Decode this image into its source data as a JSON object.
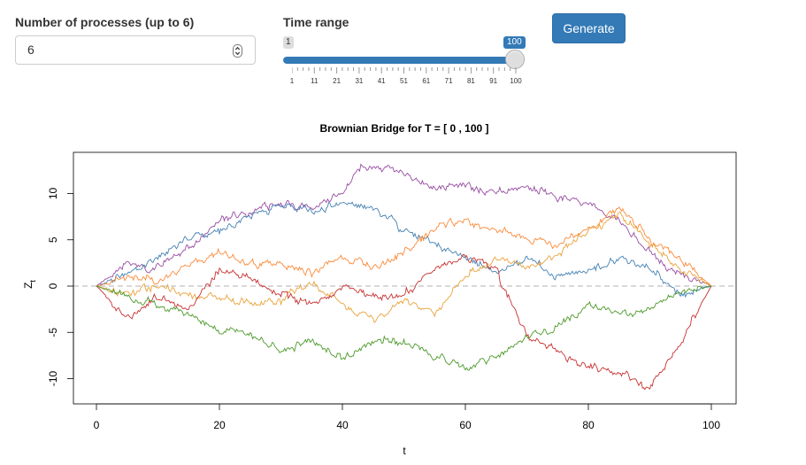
{
  "controls": {
    "processes_label": "Number of processes (up to 6)",
    "processes_value": "6",
    "time_range_label": "Time range",
    "slider": {
      "min_label": "1",
      "max_label": "100",
      "selected_fraction": 1.0,
      "tick_labels": [
        "1",
        "11",
        "21",
        "31",
        "41",
        "51",
        "61",
        "71",
        "81",
        "91",
        "100"
      ]
    },
    "generate_label": "Generate"
  },
  "chart_data": {
    "type": "line",
    "title": "Brownian Bridge for T = [ 0 , 100 ]",
    "xlabel": "t",
    "ylabel": "Z",
    "ylabel_subscript": "t",
    "xlim": [
      0,
      100
    ],
    "ylim": [
      -12.8,
      14.2
    ],
    "xticks": [
      0,
      20,
      40,
      60,
      80,
      100
    ],
    "yticks": [
      -10,
      -5,
      0,
      5,
      10
    ],
    "reference_line": 0,
    "series": [
      {
        "color": "#984ea3",
        "x": [
          0,
          5,
          10,
          15,
          20,
          25,
          30,
          35,
          40,
          43,
          47,
          50,
          55,
          60,
          65,
          70,
          75,
          80,
          85,
          90,
          95,
          100
        ],
        "y": [
          0,
          2.5,
          2.0,
          4.0,
          7.0,
          8.0,
          9.0,
          8.5,
          10.0,
          13.0,
          12.8,
          12.0,
          10.5,
          11.0,
          10.0,
          11.0,
          9.5,
          9.0,
          7.0,
          3.5,
          1.0,
          0
        ]
      },
      {
        "color": "#4682b4",
        "x": [
          0,
          5,
          10,
          15,
          20,
          25,
          30,
          35,
          40,
          45,
          50,
          55,
          60,
          65,
          70,
          75,
          80,
          85,
          90,
          95,
          100
        ],
        "y": [
          0,
          1.5,
          3.0,
          5.5,
          6.0,
          7.5,
          9.0,
          8.0,
          9.0,
          8.5,
          6.0,
          4.5,
          3.0,
          1.5,
          3.0,
          1.0,
          1.5,
          3.0,
          2.0,
          -1.0,
          0
        ]
      },
      {
        "color": "#fb8a3a",
        "x": [
          0,
          5,
          10,
          15,
          20,
          25,
          30,
          35,
          40,
          45,
          50,
          55,
          60,
          65,
          70,
          75,
          80,
          85,
          90,
          95,
          100
        ],
        "y": [
          0,
          1.0,
          0.5,
          2.5,
          3.5,
          2.5,
          2.5,
          1.5,
          3.0,
          2.0,
          3.5,
          6.0,
          7.0,
          6.0,
          5.0,
          4.5,
          6.0,
          8.5,
          5.0,
          3.0,
          0
        ]
      },
      {
        "color": "#e9a33c",
        "x": [
          0,
          5,
          10,
          15,
          20,
          25,
          30,
          35,
          40,
          45,
          50,
          55,
          60,
          65,
          70,
          75,
          80,
          85,
          90,
          95,
          100
        ],
        "y": [
          0,
          -1.0,
          0.0,
          -1.0,
          -1.5,
          -2.0,
          -1.5,
          0.5,
          -2.0,
          -3.5,
          -1.5,
          -3.0,
          1.0,
          3.0,
          2.0,
          3.5,
          6.0,
          8.0,
          4.5,
          2.0,
          0
        ]
      },
      {
        "color": "#c83232",
        "x": [
          0,
          5,
          10,
          15,
          20,
          25,
          30,
          35,
          40,
          45,
          50,
          55,
          60,
          65,
          66,
          70,
          75,
          80,
          85,
          90,
          95,
          100
        ],
        "y": [
          0,
          -3.5,
          -1.0,
          -2.5,
          1.5,
          1.0,
          -1.0,
          -2.0,
          0.0,
          -1.0,
          -1.0,
          2.0,
          3.0,
          2.0,
          0.0,
          -5.5,
          -7.0,
          -9.0,
          -9.5,
          -11.0,
          -6.0,
          0
        ]
      },
      {
        "color": "#4c9a2a",
        "x": [
          0,
          5,
          10,
          15,
          20,
          25,
          30,
          35,
          40,
          45,
          50,
          55,
          60,
          65,
          70,
          75,
          80,
          85,
          90,
          95,
          100
        ],
        "y": [
          0,
          -1.0,
          -2.0,
          -3.0,
          -5.0,
          -5.0,
          -7.0,
          -6.0,
          -8.0,
          -6.0,
          -6.0,
          -7.5,
          -9.0,
          -7.5,
          -5.5,
          -4.5,
          -2.0,
          -3.0,
          -2.5,
          -0.5,
          0
        ]
      }
    ]
  }
}
